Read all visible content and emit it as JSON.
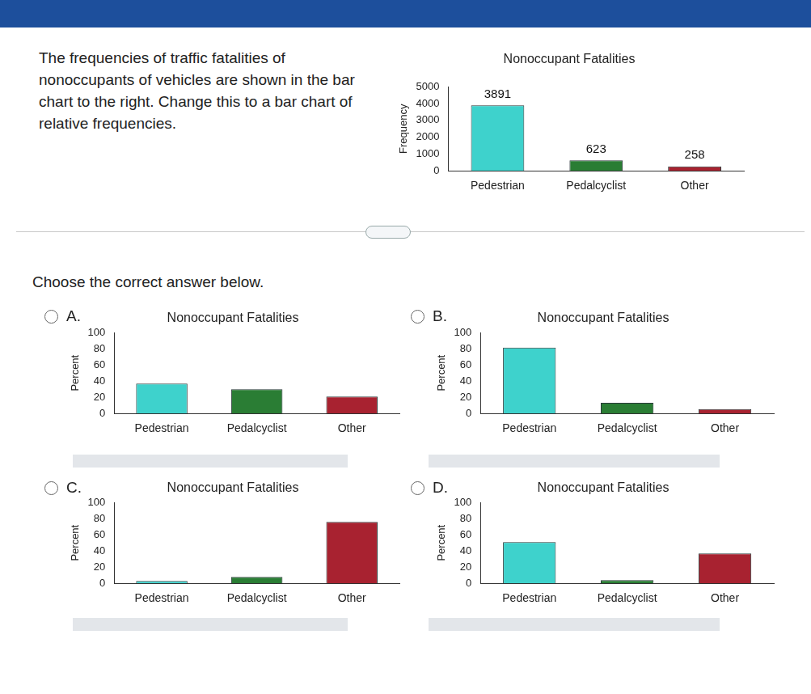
{
  "question": "The frequencies of traffic fatalities of nonoccupants of vehicles are shown in the bar chart to the right. Change this to a bar chart of relative frequencies.",
  "instruction": "Choose the correct answer below.",
  "options": [
    "A.",
    "B.",
    "C.",
    "D."
  ],
  "chart_data": [
    {
      "type": "bar",
      "title": "Nonoccupant Fatalities",
      "y_label": "Frequency",
      "categories": [
        "Pedestrian",
        "Pedalcyclist",
        "Other"
      ],
      "values": [
        3891,
        623,
        258
      ],
      "colors": [
        "#3ed2cc",
        "#2a7d34",
        "#a82230"
      ],
      "ylim": [
        0,
        5000
      ],
      "yticks": [
        0,
        1000,
        2000,
        3000,
        4000,
        5000
      ],
      "grid": false,
      "data_labels": true
    },
    {
      "type": "bar",
      "title": "Nonoccupant Fatalities",
      "y_label": "Percent",
      "categories": [
        "Pedestrian",
        "Pedalcyclist",
        "Other"
      ],
      "values": [
        37,
        30,
        21
      ],
      "colors": [
        "#3ed2cc",
        "#2a7d34",
        "#a82230"
      ],
      "ylim": [
        0,
        100
      ],
      "yticks": [
        0,
        20,
        40,
        60,
        80,
        100
      ],
      "grid": false
    },
    {
      "type": "bar",
      "title": "Nonoccupant Fatalities",
      "y_label": "Percent",
      "categories": [
        "Pedestrian",
        "Pedalcyclist",
        "Other"
      ],
      "values": [
        81.5,
        13.1,
        5.4
      ],
      "colors": [
        "#3ed2cc",
        "#2a7d34",
        "#a82230"
      ],
      "ylim": [
        0,
        100
      ],
      "yticks": [
        0,
        20,
        40,
        60,
        80,
        100
      ],
      "grid": false
    },
    {
      "type": "bar",
      "title": "Nonoccupant Fatalities",
      "y_label": "Percent",
      "categories": [
        "Pedestrian",
        "Pedalcyclist",
        "Other"
      ],
      "values": [
        3,
        8,
        76
      ],
      "colors": [
        "#3ed2cc",
        "#2a7d34",
        "#a82230"
      ],
      "ylim": [
        0,
        100
      ],
      "yticks": [
        0,
        20,
        40,
        60,
        80,
        100
      ],
      "grid": false
    },
    {
      "type": "bar",
      "title": "Nonoccupant Fatalities",
      "y_label": "Percent",
      "categories": [
        "Pedestrian",
        "Pedalcyclist",
        "Other"
      ],
      "values": [
        51,
        4,
        37
      ],
      "colors": [
        "#3ed2cc",
        "#2a7d34",
        "#a82230"
      ],
      "ylim": [
        0,
        100
      ],
      "yticks": [
        0,
        20,
        40,
        60,
        80,
        100
      ],
      "grid": false
    }
  ]
}
